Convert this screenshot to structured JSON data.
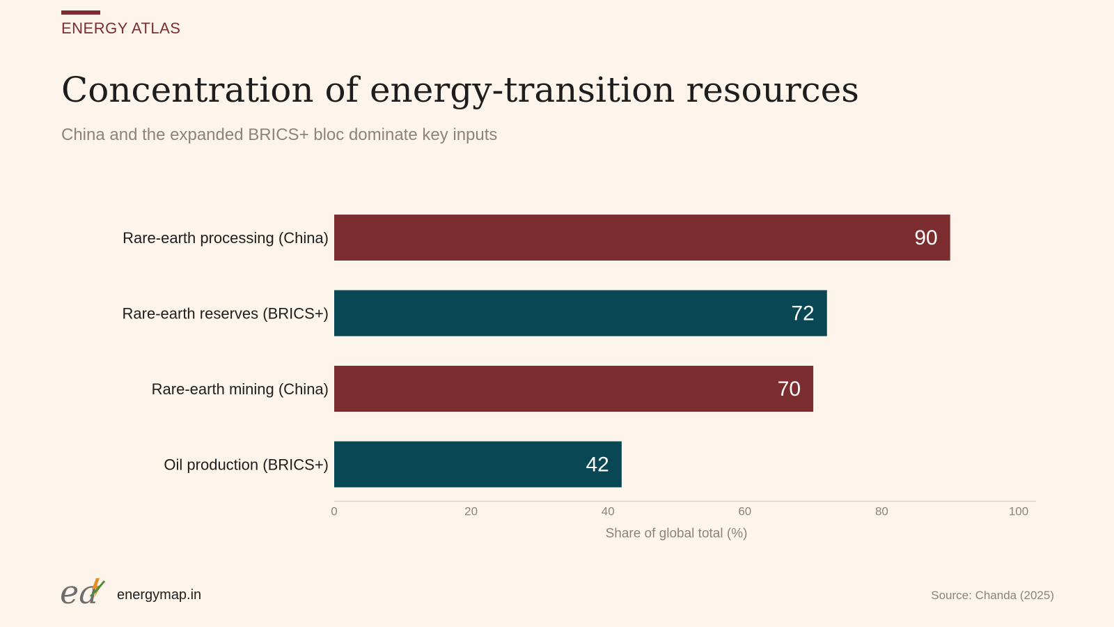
{
  "header": {
    "kicker": "ENERGY ATLAS",
    "title": "Concentration of energy-transition resources",
    "subtitle": "China and the expanded BRICS+ bloc dominate key inputs"
  },
  "chart_data": {
    "type": "bar",
    "orientation": "horizontal",
    "categories": [
      "Rare-earth processing (China)",
      "Rare-earth reserves (BRICS+)",
      "Rare-earth mining (China)",
      "Oil production (BRICS+)"
    ],
    "values": [
      90,
      72,
      70,
      42
    ],
    "bar_colors": [
      "#7b2d2f",
      "#0a4755",
      "#7b2d2f",
      "#0a4755"
    ],
    "xlabel": "Share of global total (%)",
    "ylabel": "",
    "xlim": [
      0,
      100
    ],
    "xticks": [
      0,
      20,
      40,
      60,
      80,
      100
    ],
    "grid": false,
    "legend": "none",
    "data_labels": true
  },
  "footer": {
    "site": "energymap.in",
    "source": "Source: Chanda (2025)",
    "logo_text": "ea"
  },
  "colors": {
    "background": "#fdf5eb",
    "accent": "#7b2d2f",
    "teal": "#0a4755",
    "muted_text": "#8c8479"
  }
}
